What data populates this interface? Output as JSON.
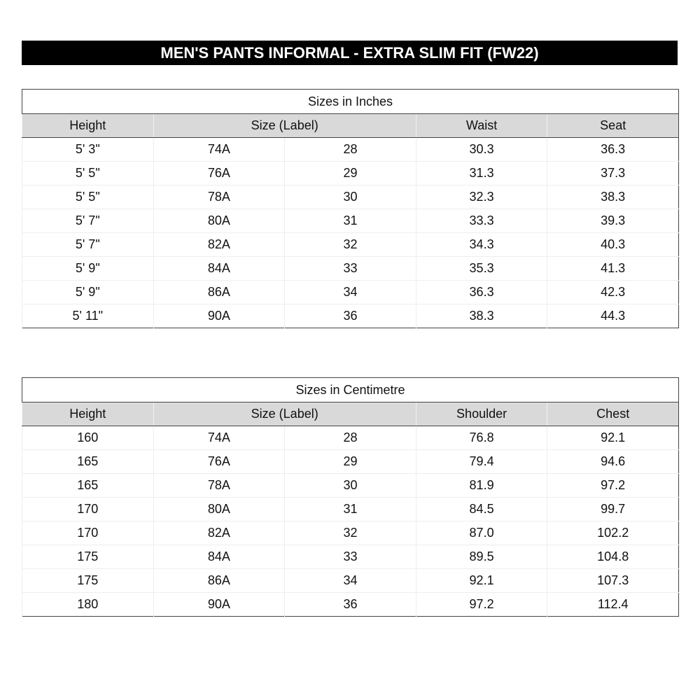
{
  "title": "MEN'S PANTS INFORMAL - EXTRA SLIM FIT (FW22)",
  "tables": [
    {
      "caption": "Sizes in Inches",
      "headers": [
        "Height",
        "Size (Label)",
        "Waist",
        "Seat"
      ],
      "rows": [
        [
          "5' 3\"",
          "74A",
          "28",
          "30.3",
          "36.3"
        ],
        [
          "5' 5\"",
          "76A",
          "29",
          "31.3",
          "37.3"
        ],
        [
          "5' 5\"",
          "78A",
          "30",
          "32.3",
          "38.3"
        ],
        [
          "5' 7\"",
          "80A",
          "31",
          "33.3",
          "39.3"
        ],
        [
          "5' 7\"",
          "82A",
          "32",
          "34.3",
          "40.3"
        ],
        [
          "5' 9\"",
          "84A",
          "33",
          "35.3",
          "41.3"
        ],
        [
          "5' 9\"",
          "86A",
          "34",
          "36.3",
          "42.3"
        ],
        [
          "5' 11\"",
          "90A",
          "36",
          "38.3",
          "44.3"
        ]
      ]
    },
    {
      "caption": "Sizes in Centimetre",
      "headers": [
        "Height",
        "Size (Label)",
        "Shoulder",
        "Chest"
      ],
      "rows": [
        [
          "160",
          "74A",
          "28",
          "76.8",
          "92.1"
        ],
        [
          "165",
          "76A",
          "29",
          "79.4",
          "94.6"
        ],
        [
          "165",
          "78A",
          "30",
          "81.9",
          "97.2"
        ],
        [
          "170",
          "80A",
          "31",
          "84.5",
          "99.7"
        ],
        [
          "170",
          "82A",
          "32",
          "87.0",
          "102.2"
        ],
        [
          "175",
          "84A",
          "33",
          "89.5",
          "104.8"
        ],
        [
          "175",
          "86A",
          "34",
          "92.1",
          "107.3"
        ],
        [
          "180",
          "90A",
          "36",
          "97.2",
          "112.4"
        ]
      ]
    }
  ]
}
